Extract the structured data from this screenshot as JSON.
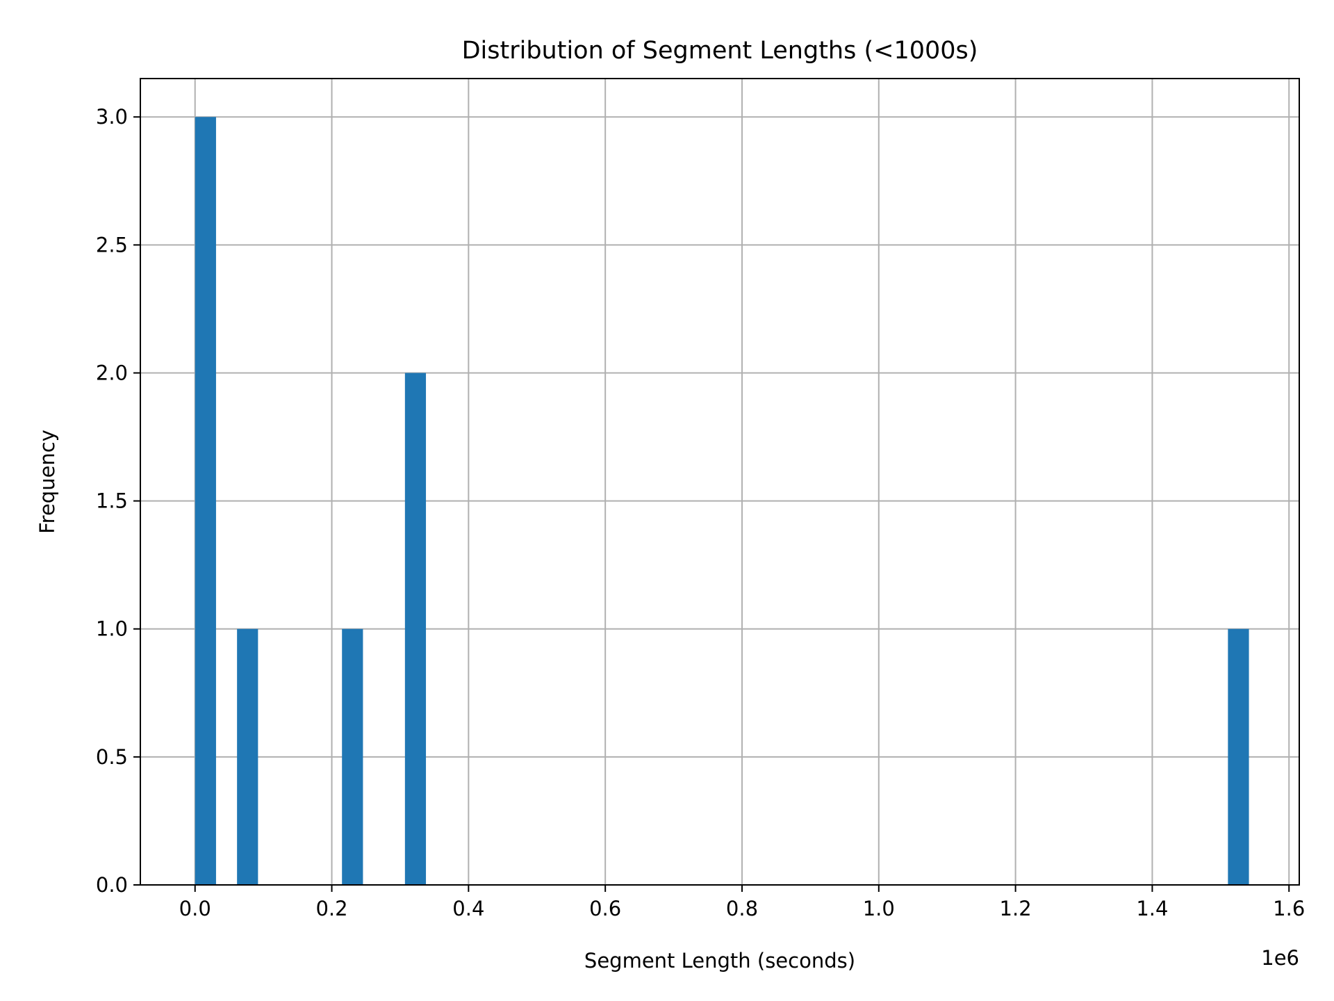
{
  "chart_data": {
    "type": "bar",
    "title": "Distribution of Segment Lengths (<1000s)",
    "xlabel": "Segment Length (seconds)",
    "ylabel": "Frequency",
    "x_offset_text": "1e6",
    "x_scale": 1000000,
    "xlim": [
      -0.08,
      1.615
    ],
    "ylim": [
      0,
      3.15
    ],
    "x_ticks": [
      0.0,
      0.2,
      0.4,
      0.6,
      0.8,
      1.0,
      1.2,
      1.4,
      1.6
    ],
    "x_tick_labels": [
      "0.0",
      "0.2",
      "0.4",
      "0.6",
      "0.8",
      "1.0",
      "1.2",
      "1.4",
      "1.6"
    ],
    "y_ticks": [
      0.0,
      0.5,
      1.0,
      1.5,
      2.0,
      2.5,
      3.0
    ],
    "y_tick_labels": [
      "0.0",
      "0.5",
      "1.0",
      "1.5",
      "2.0",
      "2.5",
      "3.0"
    ],
    "grid": true,
    "bar_color": "#1f77b4",
    "bins": [
      {
        "x0": 0.0,
        "x1": 0.0307,
        "count": 3
      },
      {
        "x0": 0.0614,
        "x1": 0.0921,
        "count": 1
      },
      {
        "x0": 0.2149,
        "x1": 0.2456,
        "count": 1
      },
      {
        "x0": 0.307,
        "x1": 0.3377,
        "count": 2
      },
      {
        "x0": 1.5107,
        "x1": 1.5414,
        "count": 1
      }
    ]
  }
}
